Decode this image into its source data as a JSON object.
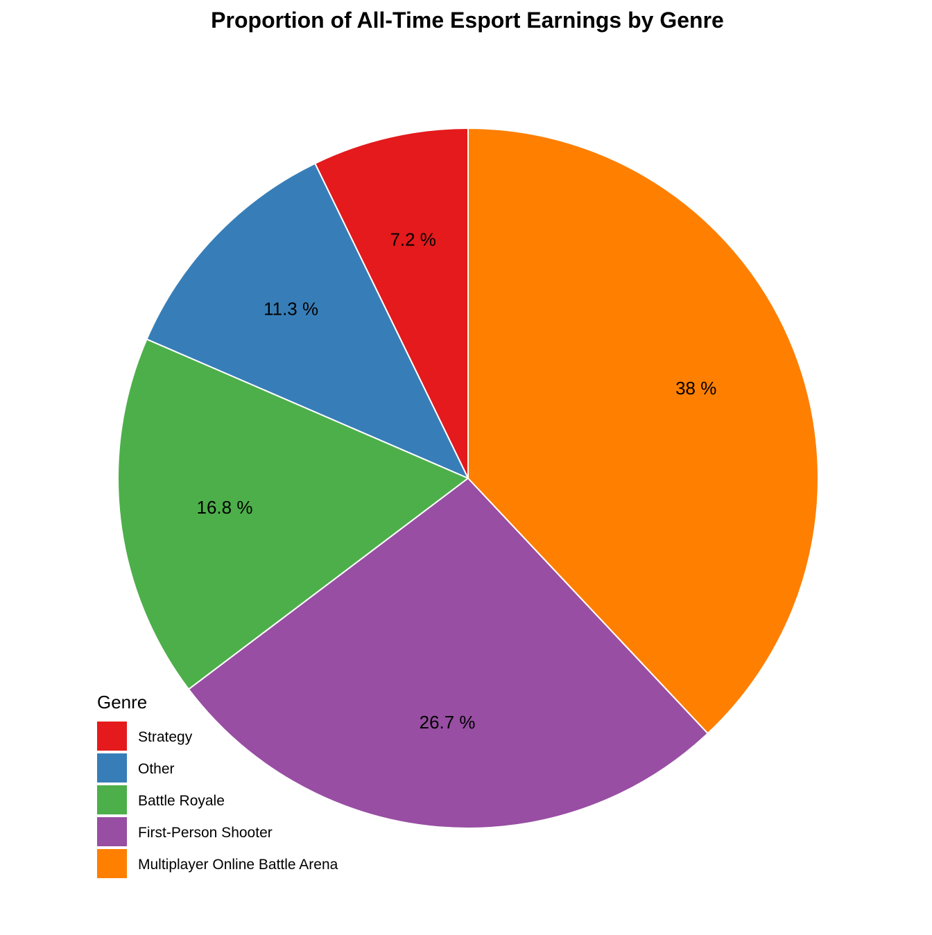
{
  "chart_data": {
    "type": "pie",
    "title": "Proportion of All-Time Esport Earnings by Genre",
    "start_angle_deg": 0,
    "direction": "counterclockwise",
    "slices": [
      {
        "name": "Strategy",
        "value": 7.2,
        "label": "7.2 %",
        "color": "#E41A1C"
      },
      {
        "name": "Other",
        "value": 11.3,
        "label": "11.3 %",
        "color": "#377EB8"
      },
      {
        "name": "Battle Royale",
        "value": 16.8,
        "label": "16.8 %",
        "color": "#4DAF4A"
      },
      {
        "name": "First-Person Shooter",
        "value": 26.7,
        "label": "26.7 %",
        "color": "#984EA3"
      },
      {
        "name": "Multiplayer Online Battle Arena",
        "value": 38.0,
        "label": "38 %",
        "color": "#FF7F00"
      }
    ],
    "legend": {
      "title": "Genre",
      "placement": "bottom-left",
      "entries": [
        "Strategy",
        "Other",
        "Battle Royale",
        "First-Person Shooter",
        "Multiplayer Online Battle Arena"
      ]
    }
  }
}
